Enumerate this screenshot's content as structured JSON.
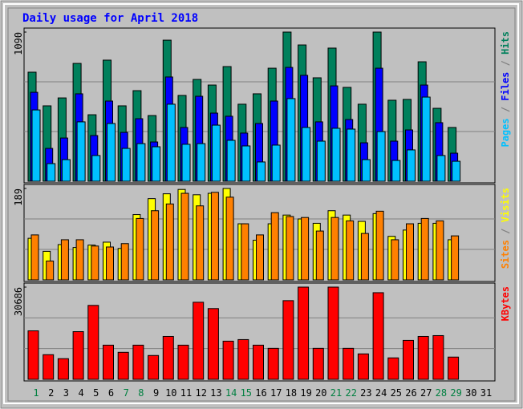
{
  "chart_data": [
    {
      "type": "bar",
      "title": "Daily usage for April 2018",
      "ylim": [
        0,
        1090
      ],
      "yticks": [
        1090
      ],
      "grid_divisions": 3,
      "legend_separator": " / ",
      "series": [
        {
          "name": "Pages",
          "color": "#00c0ff",
          "values": [
            521,
            129,
            158,
            434,
            188,
            422,
            240,
            275,
            252,
            563,
            270,
            275,
            410,
            299,
            258,
            141,
            264,
            604,
            393,
            293,
            387,
            381,
            158,
            363,
            152,
            229,
            615,
            188,
            146,
            null,
            null
          ]
        },
        {
          "name": "Files",
          "color": "#0000ff",
          "values": [
            650,
            240,
            316,
            639,
            334,
            586,
            357,
            457,
            287,
            762,
            393,
            621,
            498,
            475,
            352,
            422,
            586,
            832,
            774,
            434,
            697,
            451,
            281,
            826,
            293,
            375,
            703,
            428,
            205,
            null,
            null
          ]
        },
        {
          "name": "Hits",
          "color": "#00805c",
          "values": [
            797,
            551,
            609,
            861,
            486,
            885,
            551,
            662,
            480,
            1031,
            627,
            744,
            703,
            838,
            563,
            639,
            826,
            1090,
            996,
            756,
            973,
            686,
            563,
            1090,
            592,
            598,
            873,
            533,
            393,
            null,
            null
          ]
        }
      ]
    },
    {
      "type": "bar",
      "ylim": [
        0,
        189
      ],
      "yticks": [
        189
      ],
      "grid_divisions": 3,
      "legend_separator": " / ",
      "series": [
        {
          "name": "Sites",
          "color": "#ff8000",
          "values": [
            93,
            39,
            83,
            83,
            70,
            68,
            75,
            127,
            143,
            157,
            179,
            153,
            181,
            171,
            116,
            93,
            139,
            131,
            129,
            101,
            129,
            122,
            96,
            142,
            83,
            116,
            127,
            122,
            91,
            null,
            null
          ]
        },
        {
          "name": "Visits",
          "color": "#ffff00",
          "values": [
            86,
            59,
            73,
            67,
            72,
            78,
            65,
            135,
            168,
            178,
            187,
            176,
            179,
            189,
            116,
            82,
            116,
            134,
            126,
            117,
            143,
            134,
            121,
            137,
            90,
            103,
            117,
            117,
            83,
            null,
            null
          ]
        }
      ]
    },
    {
      "type": "bar",
      "ylim": [
        0,
        30686
      ],
      "yticks": [
        30686
      ],
      "grid_divisions": 3,
      "series": [
        {
          "name": "KBytes",
          "color": "#ff0000",
          "values": [
            16135,
            8200,
            6877,
            15870,
            24600,
            11370,
            8990,
            11370,
            7935,
            14280,
            11370,
            25650,
            23540,
            12700,
            13225,
            11370,
            10315,
            26185,
            30686,
            10315,
            30686,
            10315,
            8465,
            28830,
            7140,
            12960,
            14280,
            14550,
            7405,
            null,
            null
          ]
        }
      ],
      "categories": [
        "1",
        "2",
        "3",
        "4",
        "5",
        "6",
        "7",
        "8",
        "9",
        "10",
        "11",
        "12",
        "13",
        "14",
        "15",
        "16",
        "17",
        "18",
        "19",
        "20",
        "21",
        "22",
        "23",
        "24",
        "25",
        "26",
        "27",
        "28",
        "29",
        "30",
        "31"
      ],
      "category_colors": [
        "#008040",
        "#000000",
        "#000000",
        "#000000",
        "#000000",
        "#000000",
        "#008040",
        "#008040",
        "#000000",
        "#000000",
        "#000000",
        "#000000",
        "#000000",
        "#008040",
        "#008040",
        "#000000",
        "#000000",
        "#000000",
        "#000000",
        "#000000",
        "#008040",
        "#008040",
        "#000000",
        "#000000",
        "#000000",
        "#000000",
        "#000000",
        "#008040",
        "#008040",
        "#000000",
        "#000000"
      ]
    }
  ]
}
